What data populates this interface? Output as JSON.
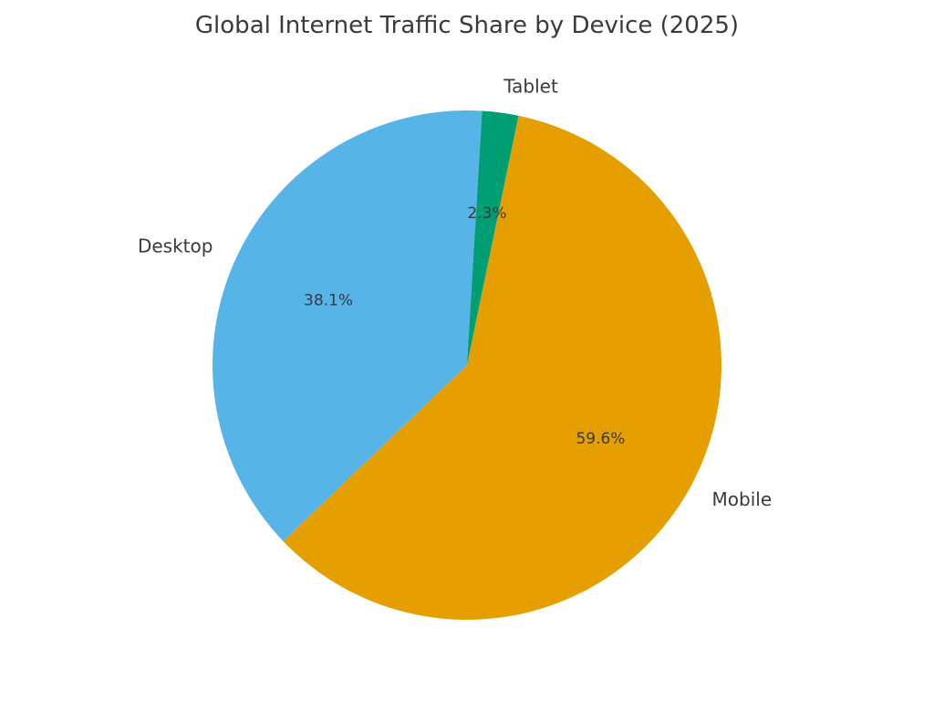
{
  "chart_data": {
    "type": "pie",
    "title": "Global Internet Traffic Share by Device (2025)",
    "slices": [
      {
        "label": "Desktop",
        "value": 38.1,
        "pct_label": "38.1%",
        "color": "#56B4E9"
      },
      {
        "label": "Mobile",
        "value": 59.6,
        "pct_label": "59.6%",
        "color": "#E69F00"
      },
      {
        "label": "Tablet",
        "value": 2.3,
        "pct_label": "2.3%",
        "color": "#009E73"
      }
    ],
    "legend": "none"
  }
}
